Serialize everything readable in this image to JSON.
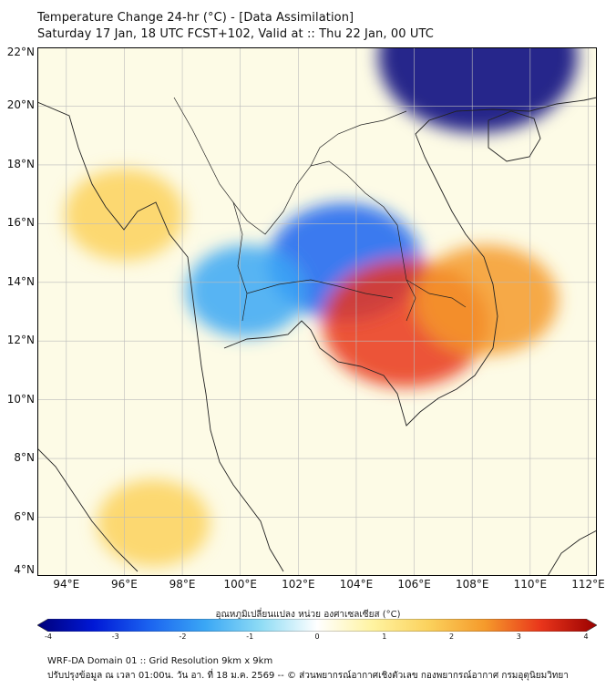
{
  "title": {
    "line1": "Temperature Change 24-hr (°C) - [Data Assimilation]",
    "line2": "Saturday 17 Jan, 18 UTC FCST+102, Valid at :: Thu 22 Jan, 00 UTC"
  },
  "map": {
    "lat_labels": [
      "22°N",
      "20°N",
      "18°N",
      "16°N",
      "14°N",
      "12°N",
      "10°N",
      "8°N",
      "6°N",
      "4°N"
    ],
    "lon_labels": [
      "94°E",
      "96°E",
      "98°E",
      "100°E",
      "102°E",
      "104°E",
      "106°E",
      "108°E",
      "110°E",
      "112°E"
    ],
    "lat_range": [
      4,
      22
    ],
    "lon_range": [
      93,
      112.3
    ],
    "background_color": "#fdfbe6",
    "anomalies": [
      {
        "label": "cold core north",
        "lon": 108.2,
        "lat": 21.7,
        "value": -4.0
      },
      {
        "label": "cold central Thailand",
        "lon": 103.6,
        "lat": 14.7,
        "value": -2.6
      },
      {
        "label": "cold west Thailand",
        "lon": 100.2,
        "lat": 13.7,
        "value": -1.6
      },
      {
        "label": "warm Cambodia",
        "lon": 105.7,
        "lat": 12.6,
        "value": 3.0
      },
      {
        "label": "warm Vietnam highlands",
        "lon": 108.5,
        "lat": 13.4,
        "value": 2.3
      },
      {
        "label": "warm Myanmar coast",
        "lon": 96.0,
        "lat": 16.3,
        "value": 1.6
      },
      {
        "label": "warm Andaman south",
        "lon": 97.0,
        "lat": 5.8,
        "value": 1.4
      }
    ]
  },
  "colorbar": {
    "title": "อุณหภูมิเปลี่ยนแปลง หน่วย องศาเซลเซียส (°C)",
    "ticks": [
      "-4",
      "-3",
      "-2",
      "-1",
      "0",
      "1",
      "2",
      "3",
      "4"
    ],
    "min": -4,
    "max": 4,
    "colors": [
      "#00007a",
      "#0018d6",
      "#1b63f0",
      "#3aa7f5",
      "#8fdcf5",
      "#ffffff",
      "#fff3a0",
      "#fbd15c",
      "#f59a2b",
      "#e9351b",
      "#9a0000"
    ]
  },
  "footer": {
    "line1": "WRF-DA Domain 01 :: Grid Resolution 9km x 9km",
    "line2": "ปรับปรุงข้อมูล ณ เวลา 01:00น. วัน อา. ที่ 18 ม.ค. 2569 -- © ส่วนพยากรณ์อากาศเชิงตัวเลข กองพยากรณ์อากาศ กรมอุตุนิยมวิทยา"
  }
}
